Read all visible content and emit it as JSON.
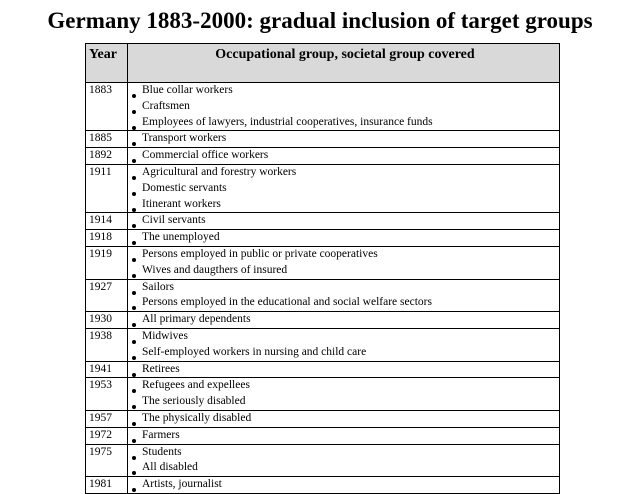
{
  "title": "Germany 1883-2000: gradual inclusion of target groups",
  "table": {
    "header": [
      "Year",
      "Occupational group, societal group covered"
    ],
    "rows": [
      {
        "year": "1883",
        "groups": [
          "Blue collar workers",
          "Craftsmen",
          "Employees of lawyers, industrial cooperatives, insurance funds"
        ]
      },
      {
        "year": "1885",
        "groups": [
          "Transport workers"
        ]
      },
      {
        "year": "1892",
        "groups": [
          "Commercial office workers"
        ]
      },
      {
        "year": "1911",
        "groups": [
          "Agricultural and forestry workers",
          "Domestic servants",
          "Itinerant workers"
        ]
      },
      {
        "year": "1914",
        "groups": [
          "Civil servants"
        ]
      },
      {
        "year": "1918",
        "groups": [
          "The unemployed"
        ]
      },
      {
        "year": "1919",
        "groups": [
          "Persons employed in public or private cooperatives",
          "Wives and daugthers of insured"
        ]
      },
      {
        "year": "1927",
        "groups": [
          "Sailors",
          "Persons employed in the educational and social welfare sectors"
        ]
      },
      {
        "year": "1930",
        "groups": [
          "All primary dependents"
        ]
      },
      {
        "year": "1938",
        "groups": [
          "Midwives",
          "Self-employed workers in nursing and child care"
        ]
      },
      {
        "year": "1941",
        "groups": [
          "Retirees"
        ]
      },
      {
        "year": "1953",
        "groups": [
          "Refugees and expellees",
          "The seriously disabled"
        ]
      },
      {
        "year": "1957",
        "groups": [
          "The physically disabled"
        ]
      },
      {
        "year": "1972",
        "groups": [
          "Farmers"
        ]
      },
      {
        "year": "1975",
        "groups": [
          "Students",
          "All disabled"
        ]
      },
      {
        "year": "1981",
        "groups": [
          "Artists, journalist"
        ]
      }
    ]
  }
}
